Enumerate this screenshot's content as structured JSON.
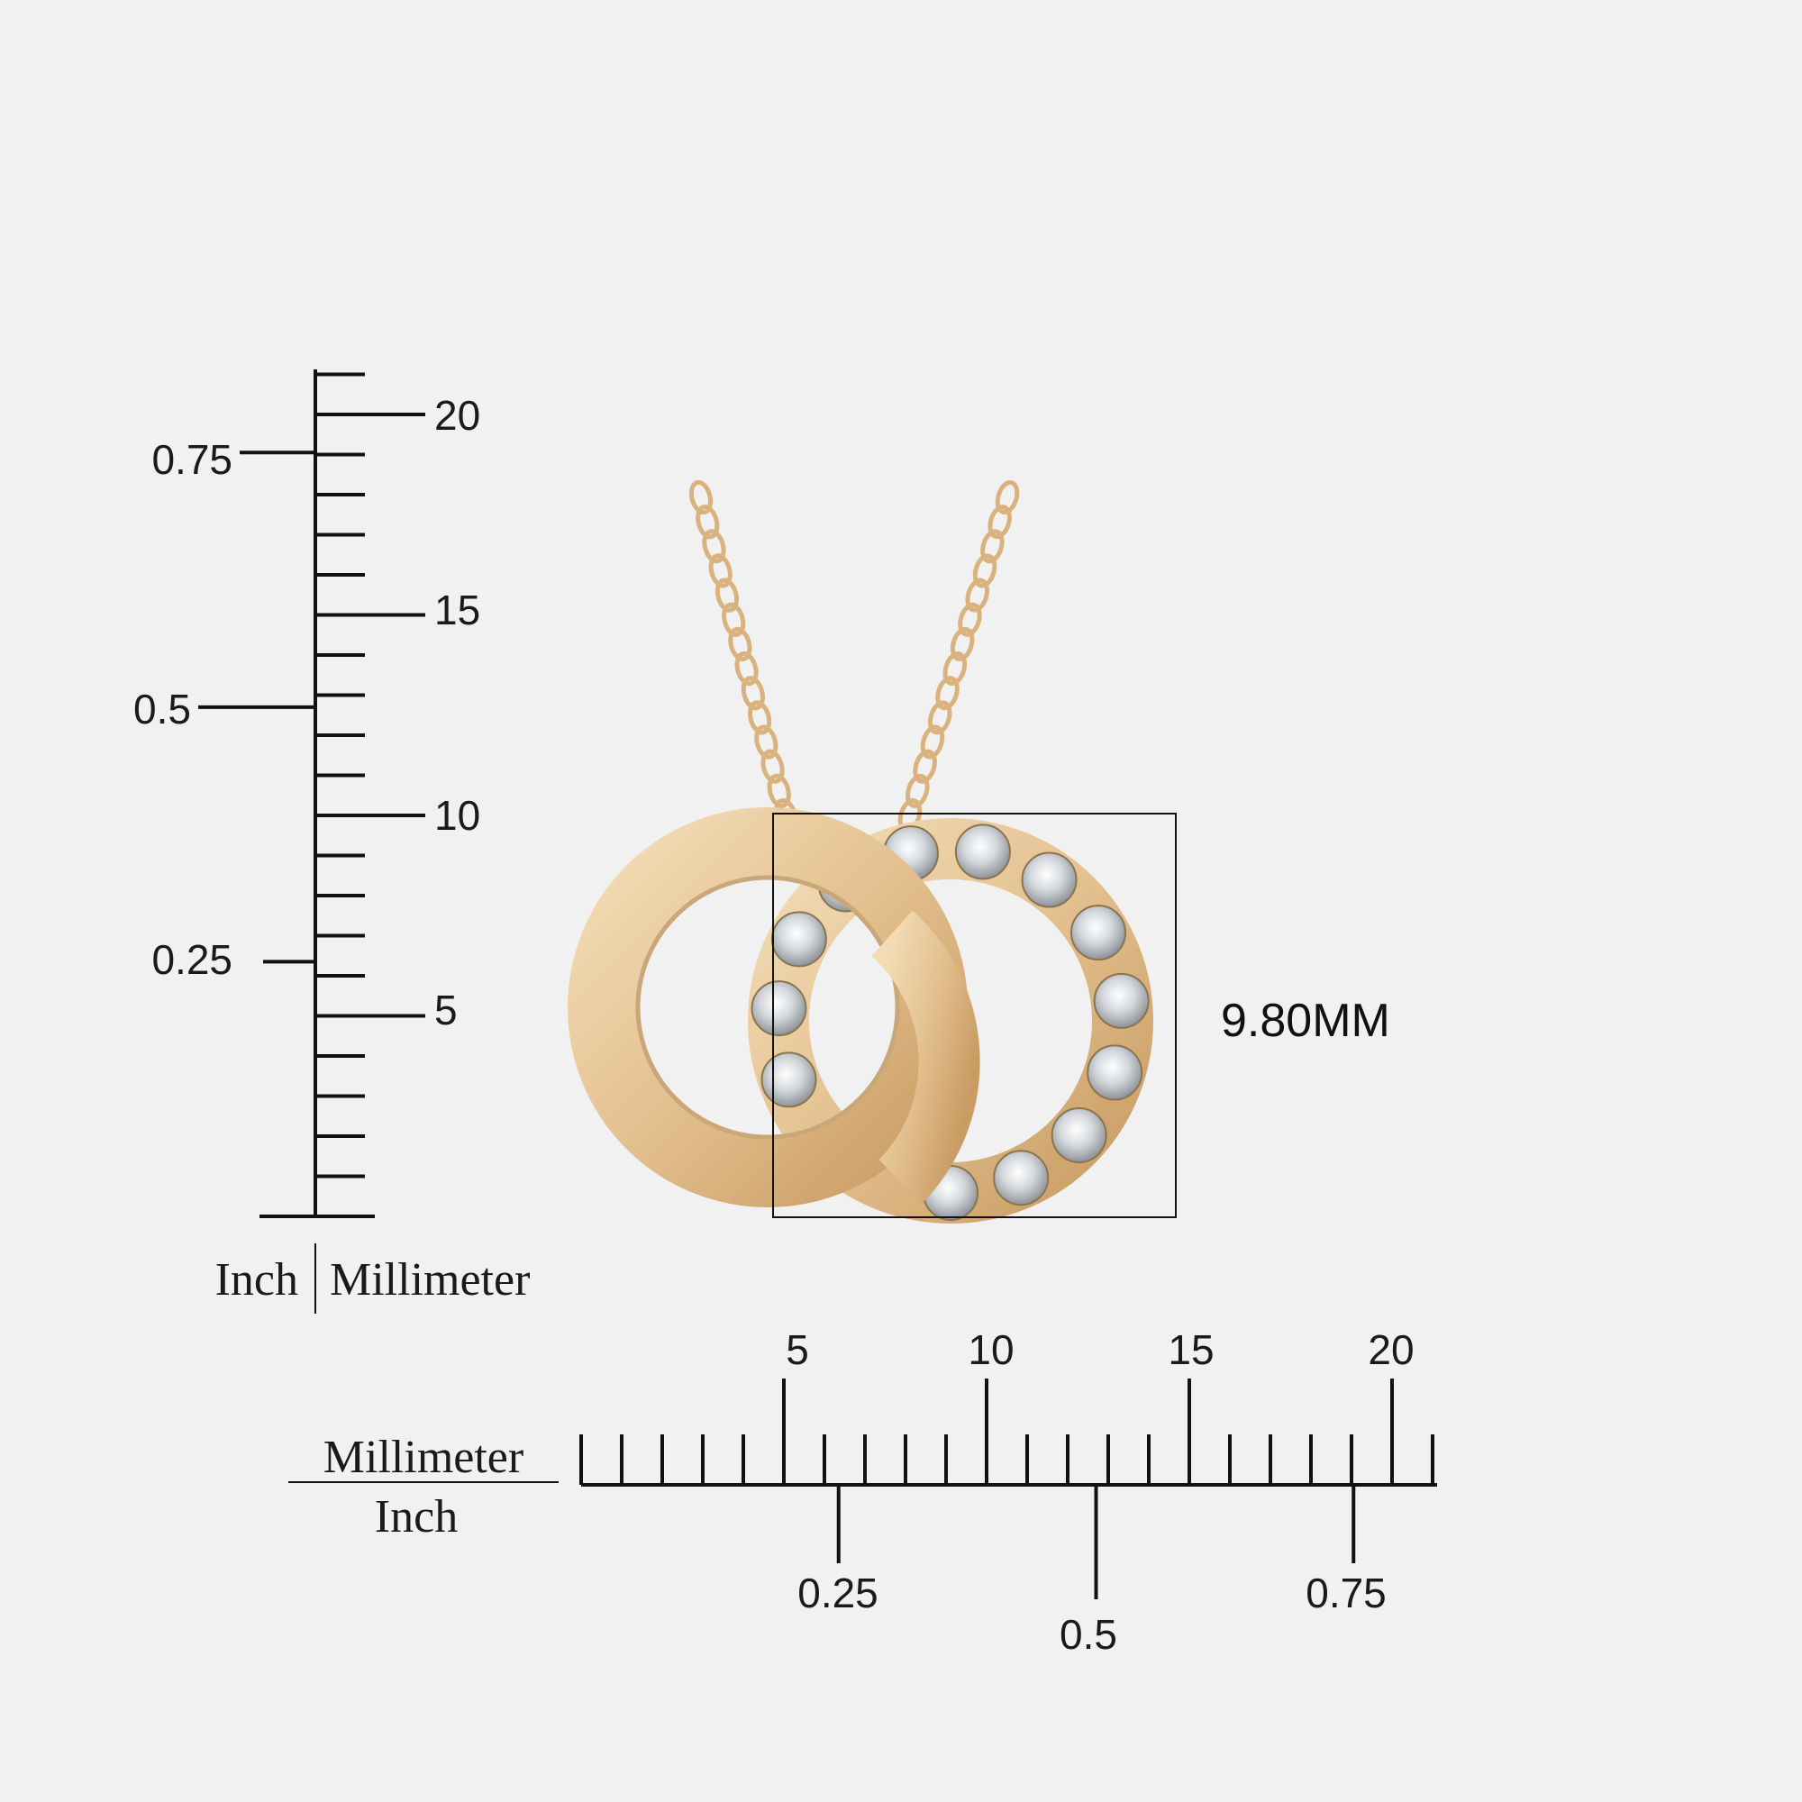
{
  "vertical_ruler": {
    "mm_labels": [
      "20",
      "15",
      "10",
      "5"
    ],
    "inch_labels": [
      "0.75",
      "0.5",
      "0.25"
    ],
    "unit_left": "Inch",
    "unit_right": "Millimeter"
  },
  "horizontal_ruler": {
    "mm_labels": [
      "5",
      "10",
      "15",
      "20"
    ],
    "inch_labels": [
      "0.25",
      "0.5",
      "0.75"
    ],
    "unit_top": "Millimeter",
    "unit_bottom": "Inch"
  },
  "dimension": {
    "label": "9.80MM"
  },
  "product": {
    "metal_color": "#e3c08f",
    "stone_count": 13
  }
}
